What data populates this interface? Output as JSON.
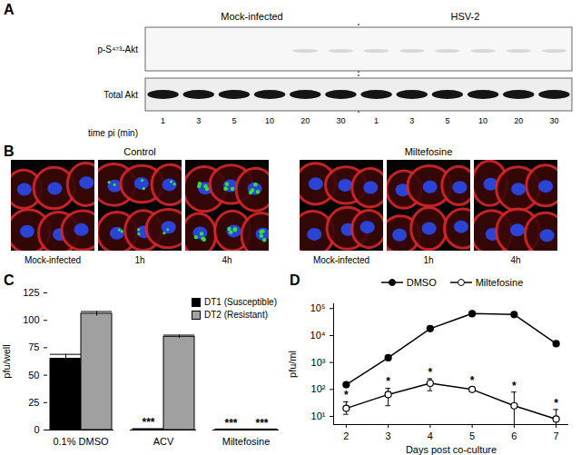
{
  "panels": {
    "A": {
      "letter": "A",
      "lanes": [
        {
          "group": "Mock-infected",
          "times": [
            1,
            3,
            5,
            10,
            20,
            30
          ]
        },
        {
          "group": "HSV-2",
          "times": [
            1,
            3,
            5,
            10,
            20,
            30
          ]
        }
      ],
      "rows": [
        "p-S⁴⁷³-Akt",
        "Total Akt"
      ],
      "time_label": "time pi (min)"
    },
    "B": {
      "letter": "B",
      "groups": [
        {
          "title": "Control",
          "images": [
            "Mock-infected",
            "1h",
            "4h"
          ]
        },
        {
          "title": "Miltefosine",
          "images": [
            "Mock-infected",
            "1h",
            "4h"
          ]
        }
      ]
    }
  },
  "chart_data": [
    {
      "letter": "C",
      "type": "bar",
      "categories": [
        "0.1% DMSO",
        "ACV",
        "Miltefosine"
      ],
      "ylabel": "pfu/well",
      "ylim": [
        0,
        125
      ],
      "yticks": [
        0,
        25,
        50,
        75,
        100,
        125
      ],
      "legend": "top-right",
      "series": [
        {
          "name": "DT1 (Susceptible)",
          "color": "#000000",
          "values": [
            65,
            0.8,
            0.5
          ],
          "error": [
            4,
            null,
            null
          ],
          "annotations": [
            null,
            "***",
            "***"
          ]
        },
        {
          "name": "DT2 (Resistant)",
          "color": "#a0a0a0",
          "values": [
            106,
            85,
            0.5
          ],
          "error": [
            2,
            1.5,
            null
          ],
          "annotations": [
            null,
            null,
            "***"
          ]
        }
      ]
    },
    {
      "letter": "D",
      "type": "line",
      "log": "y",
      "x": [
        2,
        3,
        4,
        5,
        6,
        7
      ],
      "xlabel": "Days post co-culture",
      "ylabel": "pfu/ml",
      "xlim": [
        1.7,
        7.3
      ],
      "xticks": [
        2,
        3,
        4,
        5,
        6,
        7
      ],
      "ylim": [
        5,
        150000
      ],
      "yticks": [
        {
          "value": 10,
          "label": "10¹"
        },
        {
          "value": 100,
          "label": "10²"
        },
        {
          "value": 1000,
          "label": "10³"
        },
        {
          "value": 10000,
          "label": "10⁴"
        },
        {
          "value": 100000,
          "label": "10⁵"
        }
      ],
      "legend": "top",
      "series": [
        {
          "name": "DMSO",
          "color": "#000000",
          "marker": "filled_circle",
          "values": [
            150,
            1500,
            18000,
            65000,
            60000,
            5000
          ],
          "lower": [
            140,
            1400,
            15000,
            50000,
            58000,
            4800
          ],
          "upper": [
            160,
            1650,
            22000,
            80000,
            62000,
            5300
          ]
        },
        {
          "name": "Miltefosine",
          "color": "#000000",
          "marker": "open_circle",
          "values": [
            20,
            65,
            170,
            100,
            25,
            8
          ],
          "lower": [
            12,
            25,
            90,
            85,
            5,
            5
          ],
          "upper": [
            35,
            110,
            250,
            120,
            80,
            18
          ],
          "annotations": [
            "*",
            "*",
            "*",
            "*",
            "*",
            "*"
          ]
        }
      ]
    }
  ]
}
